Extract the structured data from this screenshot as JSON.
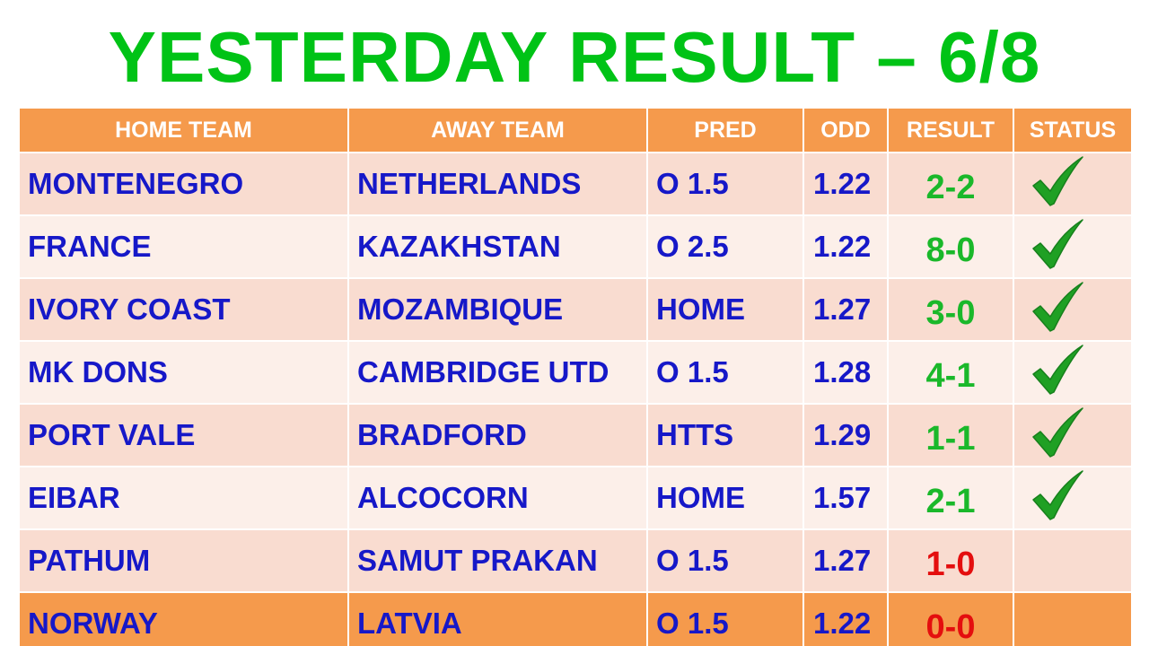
{
  "title": "YESTERDAY RESULT – 6/8",
  "headers": [
    "HOME TEAM",
    "AWAY TEAM",
    "PRED",
    "ODD",
    "RESULT",
    "STATUS"
  ],
  "rows": [
    {
      "home": "MONTENEGRO",
      "away": "NETHERLANDS",
      "pred": "O 1.5",
      "odd": "1.22",
      "result": "2-2",
      "status": "check"
    },
    {
      "home": "FRANCE",
      "away": "KAZAKHSTAN",
      "pred": "O 2.5",
      "odd": "1.22",
      "result": "8-0",
      "status": "check"
    },
    {
      "home": "IVORY COAST",
      "away": "MOZAMBIQUE",
      "pred": "HOME",
      "odd": "1.27",
      "result": "3-0",
      "status": "check"
    },
    {
      "home": "MK DONS",
      "away": "CAMBRIDGE UTD",
      "pred": "O 1.5",
      "odd": "1.28",
      "result": "4-1",
      "status": "check"
    },
    {
      "home": "PORT VALE",
      "away": "BRADFORD",
      "pred": "HTTS",
      "odd": "1.29",
      "result": "1-1",
      "status": "check"
    },
    {
      "home": "EIBAR",
      "away": "ALCOCORN",
      "pred": "HOME",
      "odd": "1.57",
      "result": "2-1",
      "status": "check"
    },
    {
      "home": "PATHUM",
      "away": "SAMUT PRAKAN",
      "pred": "O 1.5",
      "odd": "1.27",
      "result": "1-0",
      "status": ""
    },
    {
      "home": "NORWAY",
      "away": "LATVIA",
      "pred": "O 1.5",
      "odd": "1.22",
      "result": "0-0",
      "status": ""
    }
  ],
  "colors": {
    "title": "#00c316",
    "header_bg": "#f59a4c",
    "row_shade_a": "#f9dcd0",
    "row_shade_b": "#fcefe9",
    "team_text": "#1618c8",
    "result_win": "#1ab82a",
    "result_loss": "#e40e0e",
    "check": "#1fa024"
  }
}
